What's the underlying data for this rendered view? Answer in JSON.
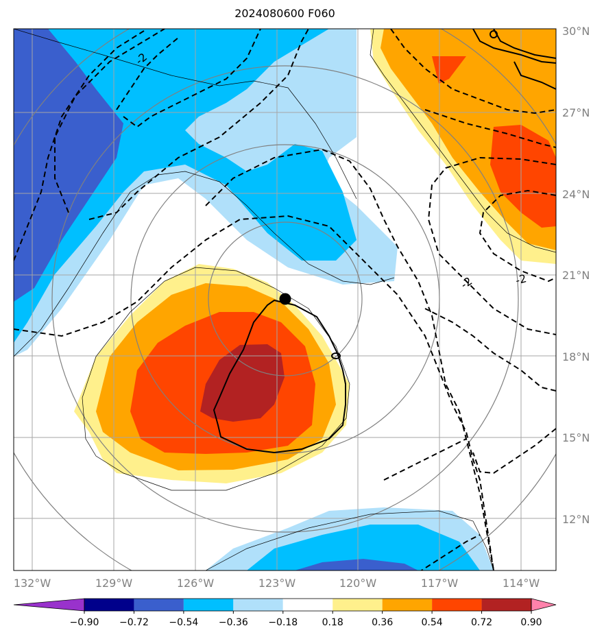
{
  "title": "2024080600 F060",
  "map": {
    "lat_labels": [
      "30°N",
      "27°N",
      "24°N",
      "21°N",
      "18°N",
      "15°N",
      "12°N"
    ],
    "lon_labels": [
      "132°W",
      "129°W",
      "126°W",
      "123°W",
      "120°W",
      "117°W",
      "114°W"
    ],
    "contour_labels": [
      "-2",
      "-2",
      "-2",
      "0"
    ],
    "storm_center_marker": "filled-black-circle",
    "colors": {
      "neg_090_072": "#00008b",
      "neg_072_054": "#3a5fcd",
      "neg_054_036": "#00bfff",
      "neg_036_018": "#b0e0fa",
      "pos_018_036": "#fff08c",
      "pos_036_054": "#ffa500",
      "pos_054_072": "#ff4500",
      "pos_072_090": "#b22222",
      "gt_090": "#ff82ab",
      "lt_neg_090": "#9932cc"
    }
  },
  "colorbar": {
    "labels": [
      "−0.90",
      "−0.72",
      "−0.54",
      "−0.36",
      "−0.18",
      "0.18",
      "0.36",
      "0.54",
      "0.72",
      "0.90"
    ],
    "colors": [
      "#9932cc",
      "#00008b",
      "#3a5fcd",
      "#00bfff",
      "#b0e0fa",
      "#ffffff",
      "#fff08c",
      "#ffa500",
      "#ff4500",
      "#b22222",
      "#ff82ab"
    ]
  }
}
